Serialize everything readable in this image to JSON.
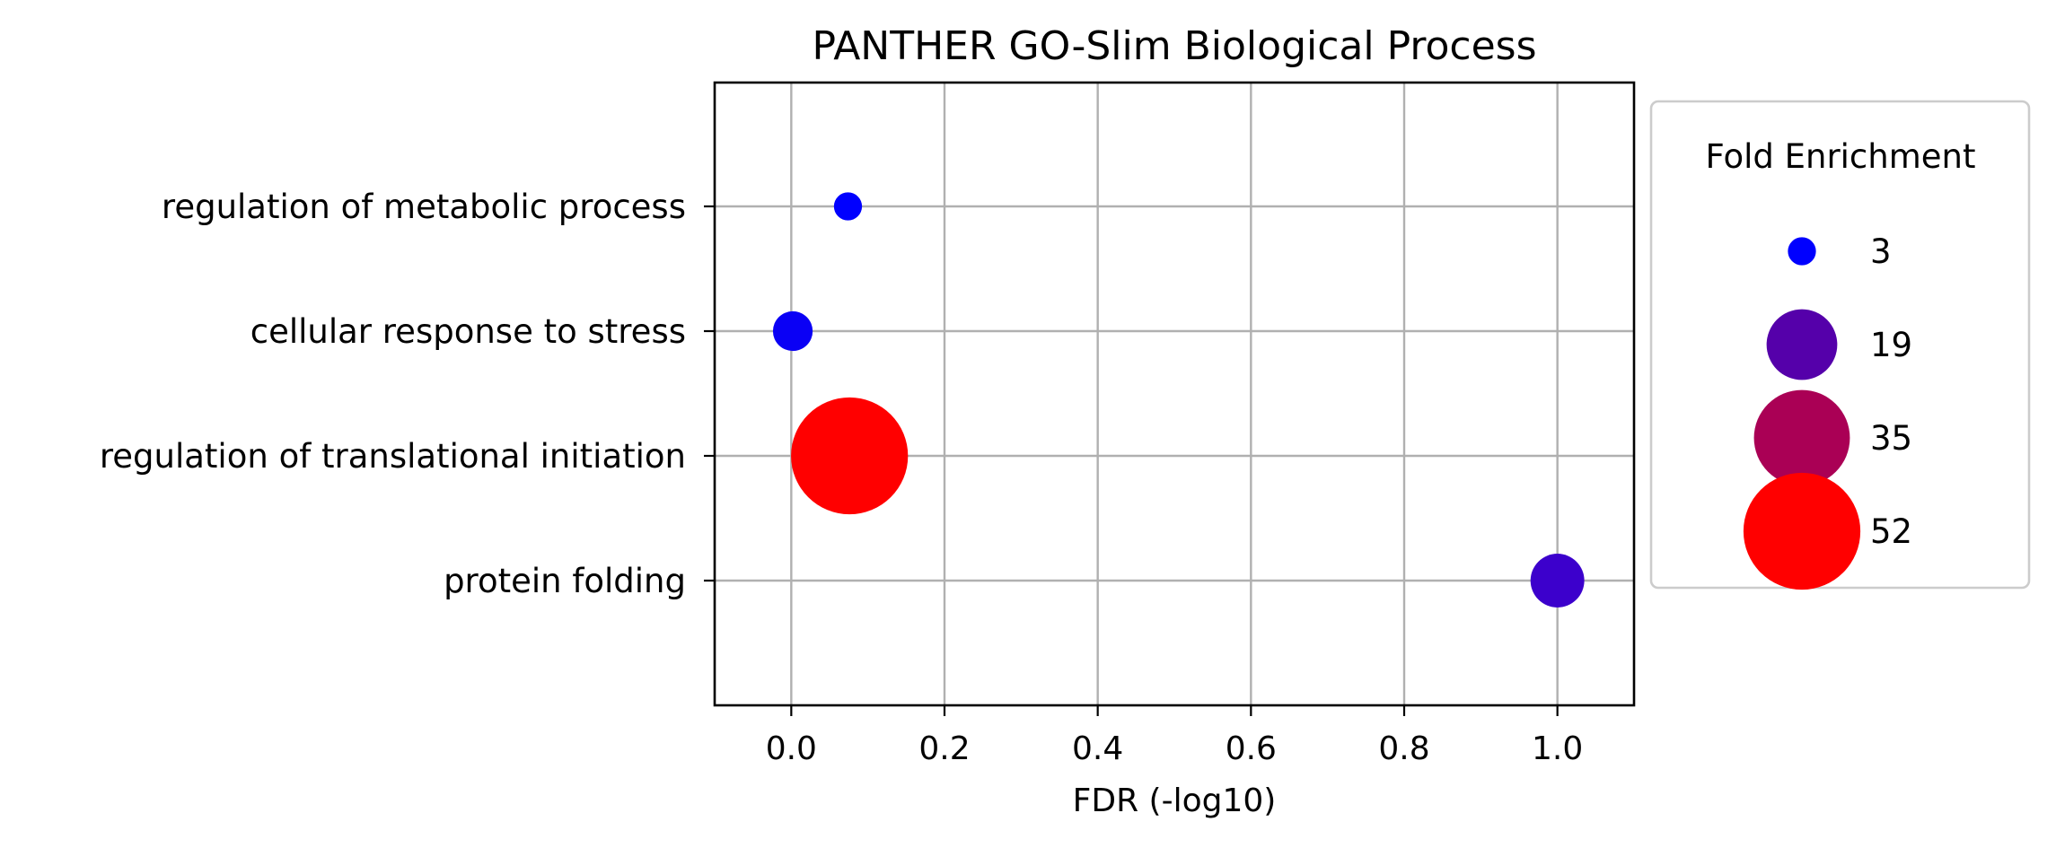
{
  "chart_data": {
    "type": "scatter",
    "title": "PANTHER GO-Slim Biological Process",
    "xlabel": "FDR (-log10)",
    "ylabel": "",
    "xlim": [
      -0.1,
      1.1
    ],
    "x_ticks": [
      0.0,
      0.2,
      0.4,
      0.6,
      0.8,
      1.0
    ],
    "x_tick_labels": [
      "0.0",
      "0.2",
      "0.4",
      "0.6",
      "0.8",
      "1.0"
    ],
    "grid": true,
    "categories": [
      "regulation of metabolic process",
      "cellular response to stress",
      "regulation of translational initiation",
      "protein folding"
    ],
    "points": [
      {
        "category": "regulation of metabolic process",
        "x": 0.074,
        "fold_enrichment": 3,
        "color": "#0000ff"
      },
      {
        "category": "cellular response to stress",
        "x": 0.002,
        "fold_enrichment": 6,
        "color": "#0a00f5"
      },
      {
        "category": "regulation of translational initiation",
        "x": 0.076,
        "fold_enrichment": 52,
        "color": "#ff0000"
      },
      {
        "category": "protein folding",
        "x": 1.0,
        "fold_enrichment": 11,
        "color": "#3c00cc"
      }
    ],
    "legend": {
      "title": "Fold Enrichment",
      "placement": "right, outside plot",
      "entries": [
        {
          "label": "3",
          "value": 3,
          "color": "#0000ff"
        },
        {
          "label": "19",
          "value": 19,
          "color": "#5500aa"
        },
        {
          "label": "35",
          "value": 35,
          "color": "#aa0055"
        },
        {
          "label": "52",
          "value": 52,
          "color": "#ff0000"
        }
      ]
    }
  }
}
